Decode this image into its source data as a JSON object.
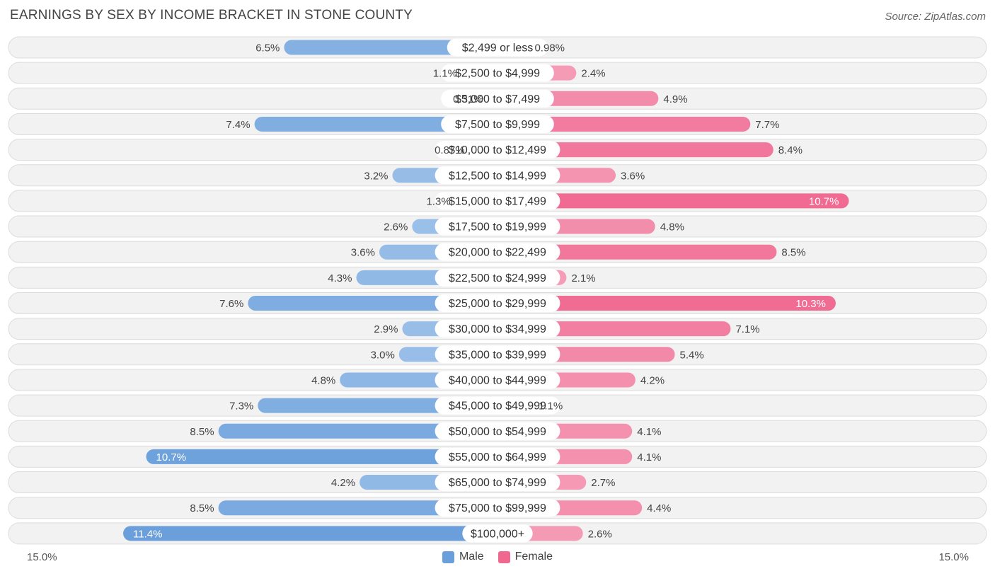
{
  "title": "EARNINGS BY SEX BY INCOME BRACKET IN STONE COUNTY",
  "source": "Source: ZipAtlas.com",
  "colors": {
    "male_light": "#a8c8ec",
    "male_dark": "#6a9fdb",
    "female_light": "#f6a9c1",
    "female_dark": "#f06890",
    "row_bg": "#f2f2f2",
    "row_border": "#dcdcdc"
  },
  "legend": {
    "male": "Male",
    "female": "Female"
  },
  "axis": {
    "left_label": "15.0%",
    "right_label": "15.0%"
  },
  "chart_data": {
    "type": "bar",
    "orientation": "horizontal-diverging",
    "title": "EARNINGS BY SEX BY INCOME BRACKET IN STONE COUNTY",
    "xlim": [
      -15.0,
      15.0
    ],
    "unit": "%",
    "categories": [
      "$2,499 or less",
      "$2,500 to $4,999",
      "$5,000 to $7,499",
      "$7,500 to $9,999",
      "$10,000 to $12,499",
      "$12,500 to $14,999",
      "$15,000 to $17,499",
      "$17,500 to $19,999",
      "$20,000 to $22,499",
      "$22,500 to $24,999",
      "$25,000 to $29,999",
      "$30,000 to $34,999",
      "$35,000 to $39,999",
      "$40,000 to $44,999",
      "$45,000 to $49,999",
      "$50,000 to $54,999",
      "$55,000 to $64,999",
      "$65,000 to $74,999",
      "$75,000 to $99,999",
      "$100,000+"
    ],
    "series": [
      {
        "name": "Male",
        "values": [
          6.5,
          1.1,
          0.31,
          7.4,
          0.87,
          3.2,
          1.3,
          2.6,
          3.6,
          4.3,
          7.6,
          2.9,
          3.0,
          4.8,
          7.3,
          8.5,
          10.7,
          4.2,
          8.5,
          11.4
        ],
        "labels": [
          "6.5%",
          "1.1%",
          "0.31%",
          "7.4%",
          "0.87%",
          "3.2%",
          "1.3%",
          "2.6%",
          "3.6%",
          "4.3%",
          "7.6%",
          "2.9%",
          "3.0%",
          "4.8%",
          "7.3%",
          "8.5%",
          "10.7%",
          "4.2%",
          "8.5%",
          "11.4%"
        ]
      },
      {
        "name": "Female",
        "values": [
          0.98,
          2.4,
          4.9,
          7.7,
          8.4,
          3.6,
          10.7,
          4.8,
          8.5,
          2.1,
          10.3,
          7.1,
          5.4,
          4.2,
          1.1,
          4.1,
          4.1,
          2.7,
          4.4,
          2.6
        ],
        "labels": [
          "0.98%",
          "2.4%",
          "4.9%",
          "7.7%",
          "8.4%",
          "3.6%",
          "10.7%",
          "4.8%",
          "8.5%",
          "2.1%",
          "10.3%",
          "7.1%",
          "5.4%",
          "4.2%",
          "1.1%",
          "4.1%",
          "4.1%",
          "2.7%",
          "4.4%",
          "2.6%"
        ]
      }
    ]
  }
}
